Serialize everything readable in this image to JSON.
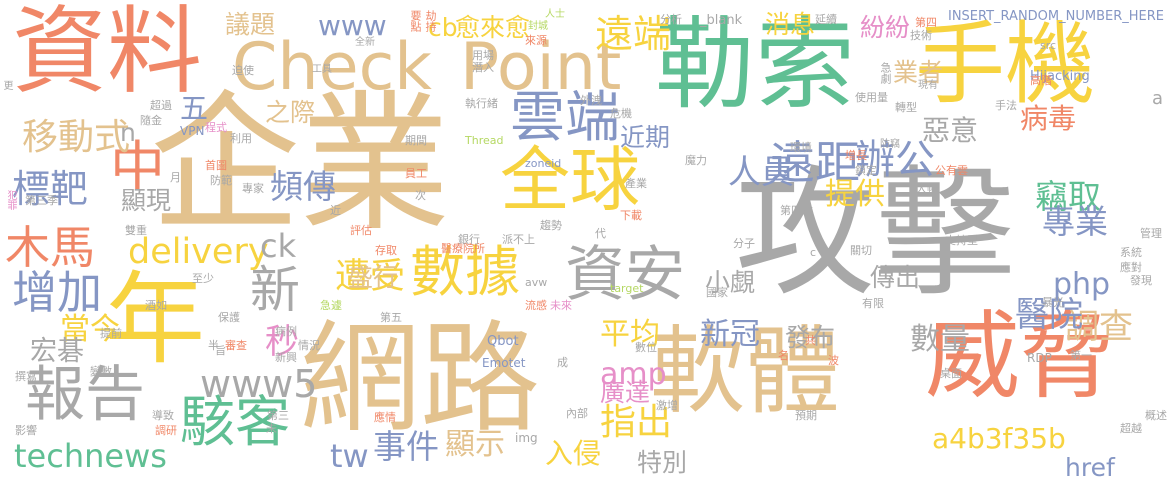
{
  "palette": {
    "tan": "#e3c28e",
    "gray": "#a8a8a8",
    "green": "#5fbf93",
    "yellow": "#f7d33f",
    "coral": "#f08767",
    "blue": "#8596c4",
    "pink": "#e68fc8",
    "lime": "#b5d863"
  },
  "words": [
    {
      "text": "攻擊",
      "color": "gray"
    },
    {
      "text": "企業",
      "color": "tan"
    },
    {
      "text": "勒索",
      "color": "green"
    },
    {
      "text": "網路",
      "color": "tan"
    },
    {
      "text": "軟體",
      "color": "tan"
    },
    {
      "text": "威脅",
      "color": "coral"
    },
    {
      "text": "資料",
      "color": "coral"
    },
    {
      "text": "手機",
      "color": "yellow"
    },
    {
      "text": "全球",
      "color": "yellow"
    },
    {
      "text": "Check",
      "color": "tan"
    },
    {
      "text": "Point",
      "color": "tan"
    },
    {
      "text": "年",
      "color": "yellow"
    },
    {
      "text": "雲端",
      "color": "blue"
    },
    {
      "text": "資安",
      "color": "gray"
    },
    {
      "text": "報告",
      "color": "gray"
    },
    {
      "text": "數據",
      "color": "yellow"
    },
    {
      "text": "駭客",
      "color": "green"
    },
    {
      "text": "木馬",
      "color": "coral"
    },
    {
      "text": "中",
      "color": "coral"
    },
    {
      "text": "遠距",
      "color": "blue"
    },
    {
      "text": "辦公",
      "color": "blue"
    },
    {
      "text": "增加",
      "color": "blue"
    },
    {
      "text": "新",
      "color": "gray"
    },
    {
      "text": "遠端",
      "color": "yellow"
    },
    {
      "text": "移動式",
      "color": "tan"
    },
    {
      "text": "標靶",
      "color": "blue"
    },
    {
      "text": "technews",
      "color": "green"
    },
    {
      "text": "www5",
      "color": "gray"
    },
    {
      "text": "delivery",
      "color": "yellow"
    },
    {
      "text": "遭受",
      "color": "yellow"
    },
    {
      "text": "www",
      "color": "blue"
    },
    {
      "text": "指出",
      "color": "yellow"
    },
    {
      "text": "平均",
      "color": "yellow"
    },
    {
      "text": "提供",
      "color": "yellow"
    },
    {
      "text": "人員",
      "color": "blue"
    },
    {
      "text": "竊取",
      "color": "green"
    },
    {
      "text": "專業",
      "color": "blue"
    },
    {
      "text": "調查",
      "color": "tan"
    },
    {
      "text": "醫院",
      "color": "blue"
    },
    {
      "text": "新冠",
      "color": "blue"
    },
    {
      "text": "a4b3f35b",
      "color": "yellow"
    },
    {
      "text": "數量",
      "color": "gray"
    },
    {
      "text": "事件",
      "color": "blue"
    },
    {
      "text": "顯示",
      "color": "tan"
    },
    {
      "text": "當今",
      "color": "yellow"
    },
    {
      "text": "tw",
      "color": "blue"
    },
    {
      "text": "php",
      "color": "blue"
    },
    {
      "text": "amp",
      "color": "pink"
    },
    {
      "text": "頻傳",
      "color": "blue"
    },
    {
      "text": "近期",
      "color": "blue"
    },
    {
      "text": "惡意",
      "color": "gray"
    },
    {
      "text": "病毒",
      "color": "coral"
    },
    {
      "text": "秒",
      "color": "pink"
    },
    {
      "text": "五",
      "color": "blue"
    },
    {
      "text": "之際",
      "color": "tan"
    },
    {
      "text": "消息",
      "color": "yellow"
    },
    {
      "text": "紛紛",
      "color": "pink"
    },
    {
      "text": "業者",
      "color": "tan"
    },
    {
      "text": "愈來愈",
      "color": "yellow"
    },
    {
      "text": "cb",
      "color": "yellow"
    },
    {
      "text": "議題",
      "color": "tan"
    },
    {
      "text": "ck",
      "color": "gray"
    },
    {
      "text": "盛行",
      "color": "tan"
    },
    {
      "text": "顯現",
      "color": "gray"
    },
    {
      "text": "宏碁",
      "color": "gray"
    },
    {
      "text": "發布",
      "color": "gray"
    },
    {
      "text": "廣達",
      "color": "pink"
    },
    {
      "text": "傳出",
      "color": "gray"
    },
    {
      "text": "小覷",
      "color": "gray"
    },
    {
      "text": "入侵",
      "color": "yellow"
    },
    {
      "text": "特別",
      "color": "gray"
    },
    {
      "text": "href",
      "color": "blue"
    },
    {
      "text": "n",
      "color": "gray"
    },
    {
      "text": "INSERT_RANDOM_NUMBER_HERE",
      "color": "blue"
    },
    {
      "text": "_blank",
      "color": "gray"
    },
    {
      "text": "Hijacking",
      "color": "blue"
    },
    {
      "text": "Thread",
      "color": "lime"
    },
    {
      "text": "zoneid",
      "color": "blue"
    },
    {
      "text": "Qbot",
      "color": "blue"
    },
    {
      "text": "Emotet",
      "color": "blue"
    },
    {
      "text": "VPN",
      "color": "blue"
    },
    {
      "text": "target",
      "color": "lime"
    },
    {
      "text": "avw",
      "color": "gray"
    },
    {
      "text": "img",
      "color": "gray"
    },
    {
      "text": "RDP",
      "color": "gray"
    },
    {
      "text": "src",
      "color": "gray"
    },
    {
      "text": "a",
      "color": "gray"
    },
    {
      "text": "工具",
      "color": "gray"
    },
    {
      "text": "全新",
      "color": "gray"
    },
    {
      "text": "要點",
      "color": "coral"
    },
    {
      "text": "劫持",
      "color": "coral"
    },
    {
      "text": "人士",
      "color": "lime"
    },
    {
      "text": "封城",
      "color": "lime"
    },
    {
      "text": "分析",
      "color": "gray"
    },
    {
      "text": "延續",
      "color": "gray"
    },
    {
      "text": "第四",
      "color": "coral"
    },
    {
      "text": "技術",
      "color": "gray"
    },
    {
      "text": "來源",
      "color": "coral"
    },
    {
      "text": "用場",
      "color": "gray"
    },
    {
      "text": "潛入",
      "color": "gray"
    },
    {
      "text": "急劇",
      "color": "gray"
    },
    {
      "text": "迫使",
      "color": "gray"
    },
    {
      "text": "更",
      "color": "gray"
    },
    {
      "text": "超過",
      "color": "gray"
    },
    {
      "text": "隨金",
      "color": "gray"
    },
    {
      "text": "程式",
      "color": "pink"
    },
    {
      "text": "利用",
      "color": "gray"
    },
    {
      "text": "期間",
      "color": "gray"
    },
    {
      "text": "執行緒",
      "color": "gray"
    },
    {
      "text": "外洩",
      "color": "gray"
    },
    {
      "text": "危機",
      "color": "gray"
    },
    {
      "text": "使用量",
      "color": "gray"
    },
    {
      "text": "轉型",
      "color": "gray"
    },
    {
      "text": "現有",
      "color": "gray"
    },
    {
      "text": "高階",
      "color": "coral"
    },
    {
      "text": "手法",
      "color": "gray"
    },
    {
      "text": "環境",
      "color": "gray"
    },
    {
      "text": "防竊",
      "color": "gray"
    },
    {
      "text": "增長",
      "color": "coral"
    },
    {
      "text": "鎖定",
      "color": "gray"
    },
    {
      "text": "公有雲",
      "color": "coral"
    },
    {
      "text": "大幅",
      "color": "gray"
    },
    {
      "text": "魔力",
      "color": "gray"
    },
    {
      "text": "產業",
      "color": "gray"
    },
    {
      "text": "首圖",
      "color": "coral"
    },
    {
      "text": "月",
      "color": "gray"
    },
    {
      "text": "防範",
      "color": "gray"
    },
    {
      "text": "專家",
      "color": "gray"
    },
    {
      "text": "員工",
      "color": "coral"
    },
    {
      "text": "犯罪",
      "color": "pink"
    },
    {
      "text": "第三季",
      "color": "gray"
    },
    {
      "text": "次",
      "color": "gray"
    },
    {
      "text": "近",
      "color": "gray"
    },
    {
      "text": "趨勢",
      "color": "gray"
    },
    {
      "text": "下載",
      "color": "coral"
    },
    {
      "text": "代",
      "color": "gray"
    },
    {
      "text": "第四季",
      "color": "gray"
    },
    {
      "text": "分子",
      "color": "gray"
    },
    {
      "text": "雙重",
      "color": "gray"
    },
    {
      "text": "評估",
      "color": "coral"
    },
    {
      "text": "存取",
      "color": "coral"
    },
    {
      "text": "醫療院所",
      "color": "coral"
    },
    {
      "text": "銀行",
      "color": "gray"
    },
    {
      "text": "派不上",
      "color": "gray"
    },
    {
      "text": "c",
      "color": "gray"
    },
    {
      "text": "關切",
      "color": "gray"
    },
    {
      "text": "支持型",
      "color": "gray"
    },
    {
      "text": "管理",
      "color": "gray"
    },
    {
      "text": "系統",
      "color": "gray"
    },
    {
      "text": "至少",
      "color": "gray"
    },
    {
      "text": "酒如",
      "color": "gray"
    },
    {
      "text": "流感",
      "color": "coral"
    },
    {
      "text": "未來",
      "color": "pink"
    },
    {
      "text": "暴光",
      "color": "gray"
    },
    {
      "text": "應對",
      "color": "gray"
    },
    {
      "text": "發現",
      "color": "gray"
    },
    {
      "text": "國家",
      "color": "gray"
    },
    {
      "text": "有限",
      "color": "gray"
    },
    {
      "text": "保護",
      "color": "gray"
    },
    {
      "text": "審查",
      "color": "coral"
    },
    {
      "text": "急遽",
      "color": "lime"
    },
    {
      "text": "第五",
      "color": "gray"
    },
    {
      "text": "病例",
      "color": "gray"
    },
    {
      "text": "情況",
      "color": "gray"
    },
    {
      "text": "半",
      "color": "gray"
    },
    {
      "text": "新興",
      "color": "gray"
    },
    {
      "text": "旨",
      "color": "gray"
    },
    {
      "text": "數位",
      "color": "gray"
    },
    {
      "text": "成",
      "color": "gray"
    },
    {
      "text": "共",
      "color": "coral"
    },
    {
      "text": "名",
      "color": "coral"
    },
    {
      "text": "波",
      "color": "coral"
    },
    {
      "text": "第一",
      "color": "gray"
    },
    {
      "text": "提前",
      "color": "gray"
    },
    {
      "text": "變數",
      "color": "gray"
    },
    {
      "text": "撰寫",
      "color": "gray"
    },
    {
      "text": "桌面",
      "color": "gray"
    },
    {
      "text": "導致",
      "color": "gray"
    },
    {
      "text": "第三",
      "color": "gray"
    },
    {
      "text": "未",
      "color": "gray"
    },
    {
      "text": "應情",
      "color": "coral"
    },
    {
      "text": "內部",
      "color": "gray"
    },
    {
      "text": "激增",
      "color": "gray"
    },
    {
      "text": "預期",
      "color": "gray"
    },
    {
      "text": "概述",
      "color": "gray"
    },
    {
      "text": "超越",
      "color": "gray"
    },
    {
      "text": "影響",
      "color": "gray"
    },
    {
      "text": "調研",
      "color": "coral"
    }
  ]
}
